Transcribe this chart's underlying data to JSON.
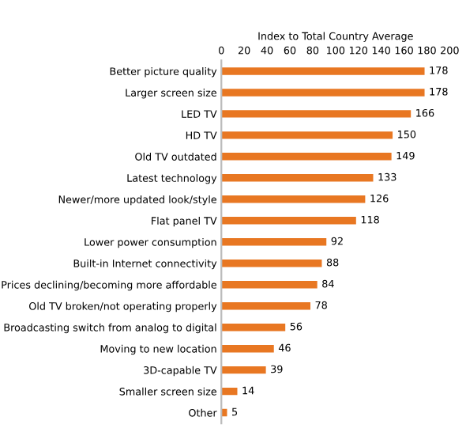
{
  "chart_data": {
    "type": "bar",
    "orientation": "horizontal",
    "xlabel": "Index to Total Country Average",
    "categories": [
      "Better picture quality",
      "Larger screen size",
      "LED TV",
      "HD TV",
      "Old TV outdated",
      "Latest technology",
      "Newer/more updated look/style",
      "Flat panel TV",
      "Lower power consumption",
      "Built-in Internet connectivity",
      "Prices declining/becoming more affordable",
      "Old TV broken/not operating properly",
      "Broadcasting switch from analog to digital",
      "Moving to new location",
      "3D-capable TV",
      "Smaller screen size",
      "Other"
    ],
    "values": [
      178,
      178,
      166,
      150,
      149,
      133,
      126,
      118,
      92,
      88,
      84,
      78,
      56,
      46,
      39,
      14,
      5
    ],
    "color": "#e87722",
    "xlim": [
      0,
      200
    ],
    "xticks": [
      0,
      20,
      40,
      60,
      80,
      100,
      120,
      140,
      160,
      180,
      200
    ],
    "data_labels": true,
    "grid": false,
    "legend": false
  }
}
